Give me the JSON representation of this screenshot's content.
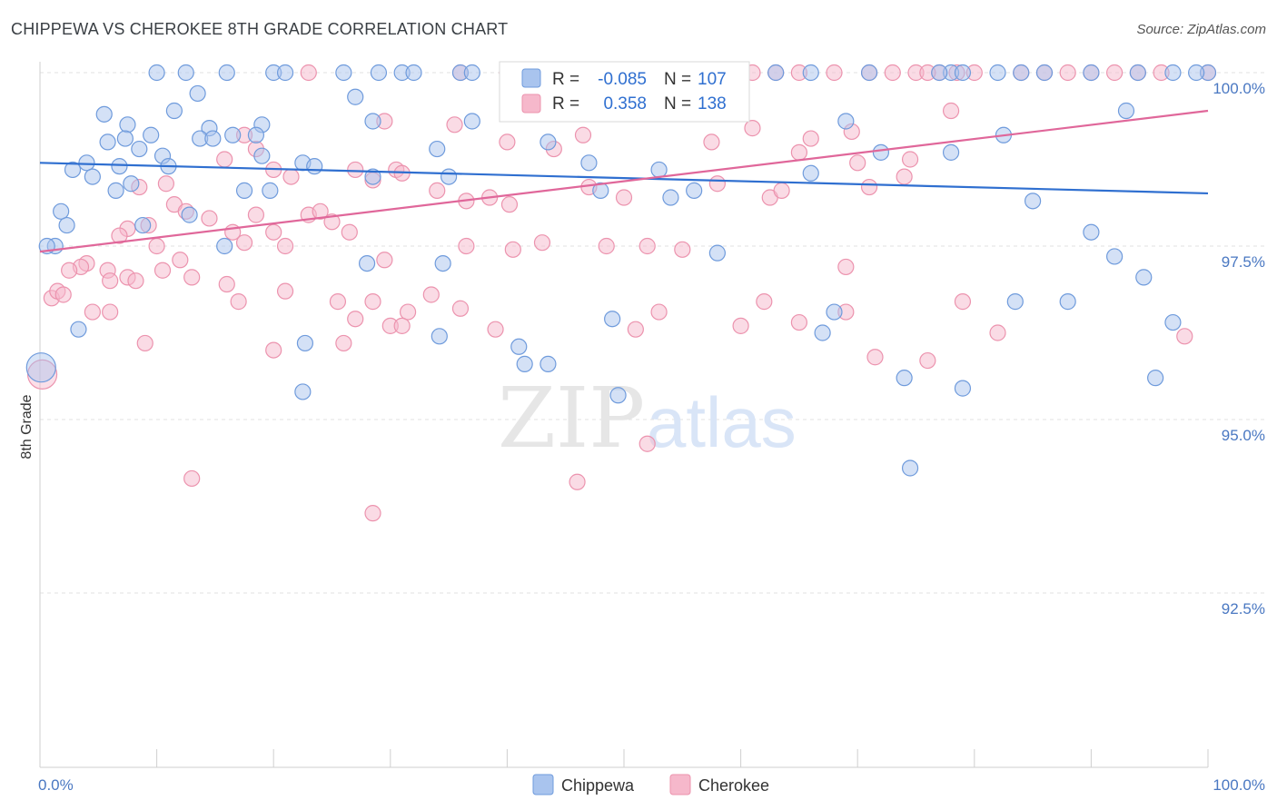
{
  "title": "CHIPPEWA VS CHEROKEE 8TH GRADE CORRELATION CHART",
  "source": "Source: ZipAtlas.com",
  "watermark": {
    "zip": "ZIP",
    "atlas": "atlas"
  },
  "legend": {
    "rows": [
      {
        "r_label": "R =",
        "r_value": "-0.085",
        "n_label": "N =",
        "n_value": "107"
      },
      {
        "r_label": "R =",
        "r_value": "0.358",
        "n_label": "N =",
        "n_value": "138"
      }
    ]
  },
  "colors": {
    "chippewa_fill": "#a9c4ee",
    "chippewa_stroke": "#6f9bdc",
    "chippewa_line": "#2f6fd0",
    "cherokee_fill": "#f6b8cb",
    "cherokee_stroke": "#ec93ae",
    "cherokee_line": "#e0679a",
    "grid": "#e2e2e2",
    "tick_label": "#4a78c2"
  },
  "chart_data": {
    "type": "scatter",
    "title": "CHIPPEWA VS CHEROKEE 8TH GRADE CORRELATION CHART",
    "xlabel": "",
    "ylabel": "8th Grade",
    "xlim": [
      0,
      100
    ],
    "ylim": [
      90.2,
      100.4
    ],
    "x_tick_labels": [
      {
        "value": 0,
        "label": "0.0%"
      },
      {
        "value": 100,
        "label": "100.0%"
      }
    ],
    "y_ticks": [
      {
        "value": 100.0,
        "label": "100.0%"
      },
      {
        "value": 97.5,
        "label": "97.5%"
      },
      {
        "value": 95.0,
        "label": "95.0%"
      },
      {
        "value": 92.5,
        "label": "92.5%"
      }
    ],
    "legend_position": "top-center",
    "series": [
      {
        "name": "Chippewa",
        "r": -0.085,
        "n": 107,
        "trend": {
          "x": [
            0,
            100
          ],
          "y": [
            98.7,
            98.26
          ]
        },
        "points": [
          [
            10,
            100
          ],
          [
            12.5,
            100
          ],
          [
            16,
            100
          ],
          [
            20,
            100
          ],
          [
            21,
            100
          ],
          [
            26,
            100
          ],
          [
            29,
            100
          ],
          [
            31,
            100
          ],
          [
            32,
            100
          ],
          [
            36,
            100
          ],
          [
            37,
            100
          ],
          [
            45,
            100
          ],
          [
            52,
            100
          ],
          [
            58,
            100
          ],
          [
            63,
            100
          ],
          [
            66,
            100
          ],
          [
            71,
            100
          ],
          [
            78,
            100
          ],
          [
            82,
            100
          ],
          [
            86,
            100
          ],
          [
            90,
            100
          ],
          [
            94,
            100
          ],
          [
            97,
            100
          ],
          [
            100,
            100
          ],
          [
            77,
            100
          ],
          [
            79,
            100
          ],
          [
            84,
            100
          ],
          [
            99,
            100
          ],
          [
            13.5,
            99.7
          ],
          [
            27,
            99.65
          ],
          [
            5.5,
            99.4
          ],
          [
            11.5,
            99.45
          ],
          [
            7.5,
            99.25
          ],
          [
            14.5,
            99.2
          ],
          [
            19,
            99.25
          ],
          [
            9.5,
            99.1
          ],
          [
            5.8,
            99.0
          ],
          [
            7.3,
            99.05
          ],
          [
            13.7,
            99.05
          ],
          [
            16.5,
            99.1
          ],
          [
            18.5,
            99.1
          ],
          [
            8.5,
            98.9
          ],
          [
            10.5,
            98.8
          ],
          [
            11.0,
            98.65
          ],
          [
            14.8,
            99.05
          ],
          [
            19,
            98.8
          ],
          [
            22.5,
            98.7
          ],
          [
            4.0,
            98.7
          ],
          [
            6.8,
            98.65
          ],
          [
            2.8,
            98.6
          ],
          [
            4.5,
            98.5
          ],
          [
            23.5,
            98.65
          ],
          [
            28.5,
            99.3
          ],
          [
            34,
            98.9
          ],
          [
            37,
            99.3
          ],
          [
            43.5,
            99.0
          ],
          [
            47,
            98.7
          ],
          [
            53,
            98.6
          ],
          [
            69,
            99.3
          ],
          [
            93,
            99.45
          ],
          [
            82.5,
            99.1
          ],
          [
            78,
            98.85
          ],
          [
            72,
            98.85
          ],
          [
            7.8,
            98.4
          ],
          [
            6.5,
            98.3
          ],
          [
            17.5,
            98.3
          ],
          [
            19.7,
            98.3
          ],
          [
            28.5,
            98.5
          ],
          [
            35,
            98.5
          ],
          [
            48,
            98.3
          ],
          [
            56,
            98.3
          ],
          [
            54,
            98.2
          ],
          [
            66,
            98.55
          ],
          [
            85,
            98.15
          ],
          [
            90,
            97.7
          ],
          [
            92,
            97.35
          ],
          [
            94.5,
            97.05
          ],
          [
            97,
            96.4
          ],
          [
            95.5,
            95.6
          ],
          [
            1.8,
            98.0
          ],
          [
            2.3,
            97.8
          ],
          [
            8.8,
            97.8
          ],
          [
            12.8,
            97.95
          ],
          [
            1.3,
            97.5
          ],
          [
            0.6,
            97.5
          ],
          [
            15.8,
            97.5
          ],
          [
            28,
            97.25
          ],
          [
            58,
            97.4
          ],
          [
            3.3,
            96.3
          ],
          [
            22.7,
            96.1
          ],
          [
            22.5,
            95.4
          ],
          [
            34.5,
            97.25
          ],
          [
            34.2,
            96.2
          ],
          [
            41,
            96.05
          ],
          [
            41.5,
            95.8
          ],
          [
            43.5,
            95.8
          ],
          [
            49,
            96.45
          ],
          [
            49.5,
            95.35
          ],
          [
            67,
            96.25
          ],
          [
            68,
            96.55
          ],
          [
            74,
            95.6
          ],
          [
            79,
            95.45
          ],
          [
            83.5,
            96.7
          ],
          [
            88,
            96.7
          ],
          [
            74.5,
            94.3
          ],
          [
            0.1,
            95.75
          ]
        ]
      },
      {
        "name": "Cherokee",
        "r": 0.358,
        "n": 138,
        "trend": {
          "x": [
            0,
            100
          ],
          "y": [
            97.42,
            99.45
          ]
        },
        "points": [
          [
            23,
            100
          ],
          [
            36,
            100
          ],
          [
            40,
            100
          ],
          [
            43,
            100
          ],
          [
            46,
            100
          ],
          [
            48,
            100
          ],
          [
            50,
            100
          ],
          [
            53,
            100
          ],
          [
            54.5,
            100
          ],
          [
            57,
            100
          ],
          [
            59,
            100
          ],
          [
            61,
            100
          ],
          [
            63,
            100
          ],
          [
            65,
            100
          ],
          [
            68,
            100
          ],
          [
            71,
            100
          ],
          [
            73,
            100
          ],
          [
            75,
            100
          ],
          [
            77,
            100
          ],
          [
            78.5,
            100
          ],
          [
            80,
            100
          ],
          [
            84,
            100
          ],
          [
            86,
            100
          ],
          [
            88,
            100
          ],
          [
            90,
            100
          ],
          [
            92,
            100
          ],
          [
            94,
            100
          ],
          [
            96,
            100
          ],
          [
            100,
            100
          ],
          [
            76,
            100
          ],
          [
            29.5,
            99.3
          ],
          [
            17.5,
            99.1
          ],
          [
            35.5,
            99.25
          ],
          [
            44,
            98.9
          ],
          [
            40,
            99.0
          ],
          [
            46.5,
            99.1
          ],
          [
            57.5,
            99.0
          ],
          [
            61,
            99.2
          ],
          [
            66,
            99.05
          ],
          [
            69.5,
            99.15
          ],
          [
            65,
            98.85
          ],
          [
            78,
            99.45
          ],
          [
            70,
            98.7
          ],
          [
            74.5,
            98.75
          ],
          [
            18.5,
            98.9
          ],
          [
            20,
            98.6
          ],
          [
            15.8,
            98.75
          ],
          [
            21.5,
            98.5
          ],
          [
            27,
            98.6
          ],
          [
            28.5,
            98.45
          ],
          [
            30.5,
            98.6
          ],
          [
            31,
            98.55
          ],
          [
            34,
            98.3
          ],
          [
            36.5,
            98.15
          ],
          [
            38.5,
            98.2
          ],
          [
            40.2,
            98.1
          ],
          [
            47,
            98.35
          ],
          [
            50,
            98.2
          ],
          [
            62.5,
            98.2
          ],
          [
            63.5,
            98.3
          ],
          [
            71,
            98.35
          ],
          [
            74,
            98.5
          ],
          [
            58,
            98.4
          ],
          [
            10.8,
            98.4
          ],
          [
            8.5,
            98.35
          ],
          [
            11.5,
            98.1
          ],
          [
            12.5,
            98.0
          ],
          [
            14.5,
            97.9
          ],
          [
            16.5,
            97.7
          ],
          [
            17.5,
            97.55
          ],
          [
            18.5,
            97.95
          ],
          [
            20,
            97.7
          ],
          [
            21,
            97.5
          ],
          [
            23,
            97.95
          ],
          [
            24,
            98.0
          ],
          [
            25,
            97.85
          ],
          [
            26.5,
            97.7
          ],
          [
            29.5,
            97.3
          ],
          [
            36.5,
            97.5
          ],
          [
            40.5,
            97.45
          ],
          [
            43,
            97.55
          ],
          [
            48.5,
            97.5
          ],
          [
            52,
            97.5
          ],
          [
            55,
            97.45
          ],
          [
            69,
            97.2
          ],
          [
            7.5,
            97.75
          ],
          [
            9.3,
            97.8
          ],
          [
            10,
            97.5
          ],
          [
            6.8,
            97.65
          ],
          [
            4,
            97.25
          ],
          [
            3.5,
            97.2
          ],
          [
            2.5,
            97.15
          ],
          [
            5.8,
            97.15
          ],
          [
            6,
            97.0
          ],
          [
            7.5,
            97.05
          ],
          [
            8.2,
            97.0
          ],
          [
            10.5,
            97.15
          ],
          [
            12,
            97.3
          ],
          [
            13,
            97.05
          ],
          [
            16,
            96.95
          ],
          [
            17,
            96.7
          ],
          [
            21,
            96.85
          ],
          [
            25.5,
            96.7
          ],
          [
            27,
            96.45
          ],
          [
            28.5,
            96.7
          ],
          [
            31.5,
            96.55
          ],
          [
            33.5,
            96.8
          ],
          [
            1,
            96.75
          ],
          [
            1.5,
            96.85
          ],
          [
            2,
            96.8
          ],
          [
            4.5,
            96.55
          ],
          [
            6,
            96.55
          ],
          [
            9,
            96.1
          ],
          [
            20,
            96.0
          ],
          [
            26,
            96.1
          ],
          [
            30,
            96.35
          ],
          [
            31,
            96.35
          ],
          [
            36,
            96.6
          ],
          [
            39,
            96.3
          ],
          [
            51,
            96.3
          ],
          [
            53,
            96.55
          ],
          [
            60,
            96.35
          ],
          [
            62,
            96.7
          ],
          [
            65,
            96.4
          ],
          [
            69,
            96.55
          ],
          [
            79,
            96.7
          ],
          [
            82,
            96.25
          ],
          [
            71.5,
            95.9
          ],
          [
            76,
            95.85
          ],
          [
            98,
            96.2
          ],
          [
            13,
            94.15
          ],
          [
            28.5,
            93.65
          ],
          [
            46,
            94.1
          ],
          [
            52,
            94.65
          ],
          [
            0.2,
            95.65
          ]
        ]
      }
    ]
  },
  "bottom_legend": [
    {
      "label": "Chippewa"
    },
    {
      "label": "Cherokee"
    }
  ]
}
